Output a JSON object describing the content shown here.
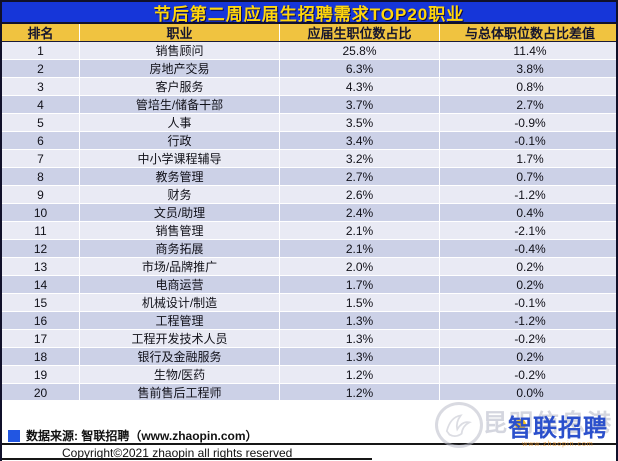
{
  "chart_data": {
    "type": "table",
    "title": "节后第二周应届生招聘需求TOP20职业",
    "columns": [
      "排名",
      "职业",
      "应届生职位数占比",
      "与总体职位数占比差值"
    ],
    "rows": [
      [
        "1",
        "销售顾问",
        "25.8%",
        "11.4%"
      ],
      [
        "2",
        "房地产交易",
        "6.3%",
        "3.8%"
      ],
      [
        "3",
        "客户服务",
        "4.3%",
        "0.8%"
      ],
      [
        "4",
        "管培生/储备干部",
        "3.7%",
        "2.7%"
      ],
      [
        "5",
        "人事",
        "3.5%",
        "-0.9%"
      ],
      [
        "6",
        "行政",
        "3.4%",
        "-0.1%"
      ],
      [
        "7",
        "中小学课程辅导",
        "3.2%",
        "1.7%"
      ],
      [
        "8",
        "教务管理",
        "2.7%",
        "0.7%"
      ],
      [
        "9",
        "财务",
        "2.6%",
        "-1.2%"
      ],
      [
        "10",
        "文员/助理",
        "2.4%",
        "0.4%"
      ],
      [
        "11",
        "销售管理",
        "2.1%",
        "-2.1%"
      ],
      [
        "12",
        "商务拓展",
        "2.1%",
        "-0.4%"
      ],
      [
        "13",
        "市场/品牌推广",
        "2.0%",
        "0.2%"
      ],
      [
        "14",
        "电商运营",
        "1.7%",
        "0.2%"
      ],
      [
        "15",
        "机械设计/制造",
        "1.5%",
        "-0.1%"
      ],
      [
        "16",
        "工程管理",
        "1.3%",
        "-1.2%"
      ],
      [
        "17",
        "工程开发技术人员",
        "1.3%",
        "-0.2%"
      ],
      [
        "18",
        "银行及金融服务",
        "1.3%",
        "0.2%"
      ],
      [
        "19",
        "生物/医药",
        "1.2%",
        "-0.2%"
      ],
      [
        "20",
        "售前售后工程师",
        "1.2%",
        "0.0%"
      ]
    ],
    "source": "数据来源: 智联招聘（www.zhaopin.com）",
    "layout_hints": {
      "grid": "alternating-row-shading",
      "value_format": "percent"
    }
  },
  "footer": {
    "source": "数据来源: 智联招聘（www.zhaopin.com）",
    "copyright": "Copyright©2021 zhaopin all rights reserved"
  },
  "watermark": {
    "site_text": "昆明信息港",
    "logo_text": "智联招聘",
    "logo_url": "www.zhaopin.com"
  },
  "colors": {
    "title_bg": "#1636d9",
    "title_text": "#ffd60a",
    "header_bg": "#f0c340",
    "header_text": "#15152e",
    "row_light": "#e9eaf4",
    "row_dark": "#ccd1e7",
    "source_bullet": "#2256e2",
    "logo_blue": "#2b50cc",
    "logo_yellow": "#f8c51c"
  }
}
